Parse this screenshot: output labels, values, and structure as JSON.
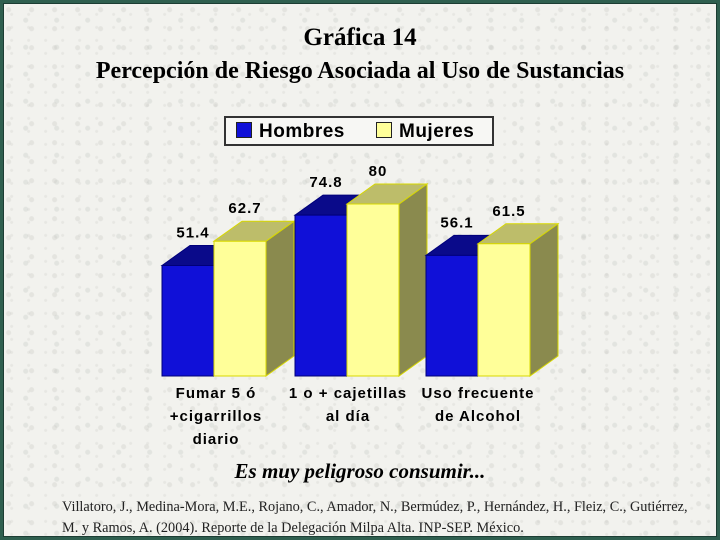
{
  "title": "Gráfica 14",
  "subtitle": "Percepción de Riesgo Asociada al Uso de Sustancias",
  "caption": "Es muy peligroso consumir...",
  "source": "Villatoro, J., Medina-Mora, M.E., Rojano, C., Amador, N., Bermúdez, P., Hernández, H., Fleiz, C., Gutiérrez, M. y Ramos, A. (2004). Reporte de la Delegación Milpa Alta. INP-SEP. México.",
  "legend": [
    "Hombres",
    "Mujeres"
  ],
  "colors": {
    "hombres": "#1010d8",
    "mujeres": "#ffff99",
    "outline": "#d8d800"
  },
  "chart_data": {
    "type": "bar",
    "categories": [
      "Fumar 5 ó +cigarrillos diario",
      "1 o + cajetillas al día",
      "Uso frecuente de Alcohol"
    ],
    "category_lines": [
      [
        "Fumar 5 ó",
        "+cigarrillos",
        "diario"
      ],
      [
        "1 o + cajetillas",
        "al día"
      ],
      [
        "Uso frecuente",
        "de Alcohol"
      ]
    ],
    "series": [
      {
        "name": "Hombres",
        "values": [
          51.4,
          74.8,
          56.1
        ]
      },
      {
        "name": "Mujeres",
        "values": [
          62.7,
          80,
          61.5
        ]
      }
    ],
    "value_labels": [
      [
        "51.4",
        "74.8",
        "56.1"
      ],
      [
        "62.7",
        "80",
        "61.5"
      ]
    ],
    "ylim": [
      0,
      80
    ],
    "legend_position": "top",
    "grid": false,
    "three_d": true
  }
}
